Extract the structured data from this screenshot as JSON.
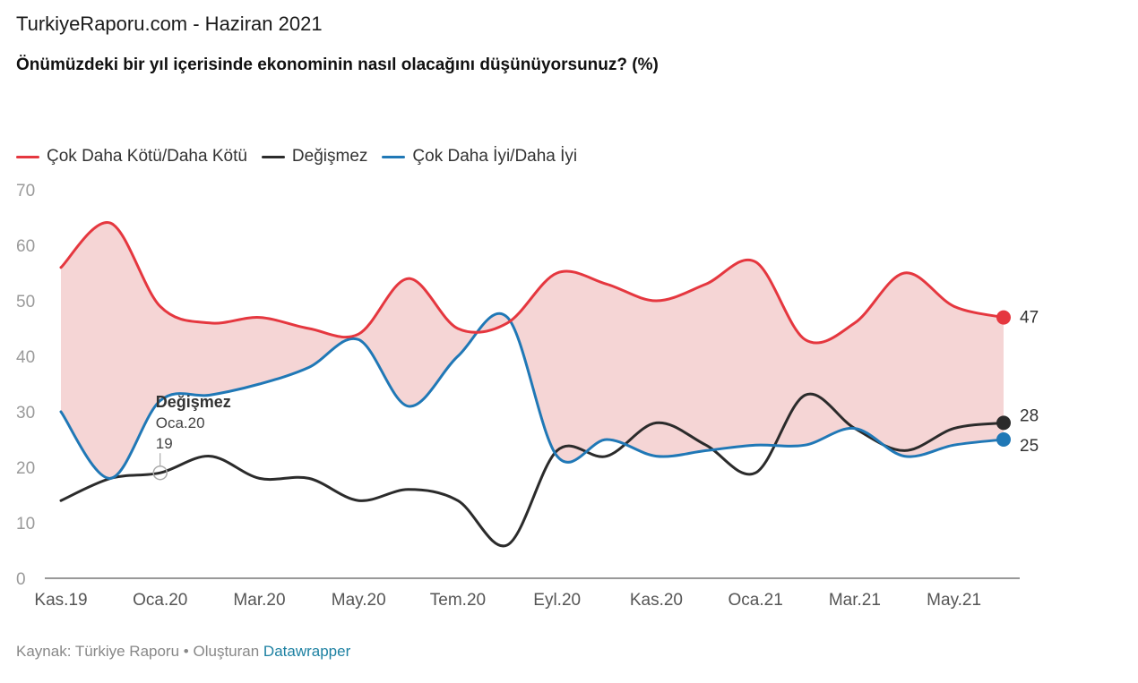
{
  "header": {
    "line": "TurkiyeRaporu.com - Haziran 2021"
  },
  "footer": {
    "source_text": "Kaynak: Türkiye Raporu",
    "separator": "•",
    "created_text": "Oluşturan",
    "tool_link": "Datawrapper"
  },
  "chart_data": {
    "type": "line",
    "title": "Önümüzdeki bir yıl içerisinde ekonominin nasıl olacağını düşünüyorsunuz? (%)",
    "x_tick_labels": [
      "Kas.19",
      "Oca.20",
      "Mar.20",
      "May.20",
      "Tem.20",
      "Eyl.20",
      "Kas.20",
      "Oca.21",
      "Mar.21",
      "May.21"
    ],
    "x": [
      "Kas.19",
      "Ara.19",
      "Oca.20",
      "Şub.20",
      "Mar.20",
      "Nis.20",
      "May.20",
      "Haz.20",
      "Tem.20",
      "Ağu.20",
      "Eyl.20",
      "Eki.20",
      "Kas.20",
      "Ara.20",
      "Oca.21",
      "Şub.21",
      "Mar.21",
      "Nis.21",
      "May.21",
      "Haz.21"
    ],
    "ylim": [
      0,
      70
    ],
    "y_ticks": [
      0,
      10,
      20,
      30,
      40,
      50,
      60,
      70
    ],
    "grid": false,
    "legend_position": "top-left",
    "series": [
      {
        "name": "Çok Daha Kötü/Daha Kötü",
        "color": "#e5373f",
        "values": [
          56,
          64,
          49,
          46,
          47,
          45,
          44,
          54,
          45,
          46,
          55,
          53,
          50,
          53,
          57,
          43,
          46,
          55,
          49,
          47
        ]
      },
      {
        "name": "Değişmez",
        "color": "#2b2b2b",
        "values": [
          14,
          18,
          19,
          22,
          18,
          18,
          14,
          16,
          14,
          6,
          23,
          22,
          28,
          24,
          19,
          33,
          27,
          23,
          27,
          28
        ]
      },
      {
        "name": "Çok Daha İyi/Daha İyi",
        "color": "#2078b6",
        "values": [
          30,
          18,
          32,
          33,
          35,
          38,
          43,
          31,
          40,
          47,
          22,
          25,
          22,
          23,
          24,
          24,
          27,
          22,
          24,
          25
        ]
      }
    ],
    "fill_between": {
      "series": [
        "Çok Daha Kötü/Daha Kötü",
        "Çok Daha İyi/Daha İyi"
      ],
      "color": "#f5d5d5"
    },
    "end_labels": [
      "47",
      "28",
      "25"
    ],
    "annotation": {
      "series": "Değişmez",
      "title": "Değişmez",
      "x": "Oca.20",
      "x_label": "Oca.20",
      "value": "19"
    }
  }
}
